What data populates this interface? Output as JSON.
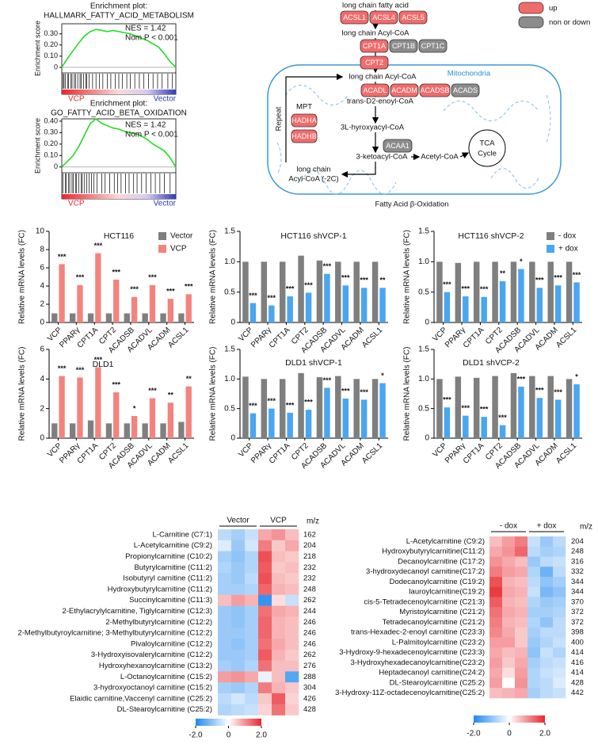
{
  "chart_data": [
    {
      "type": "line",
      "title": "Enrichment plot:",
      "subtitle": "HALLMARK_FATTY_ACID_METABOLISM",
      "ylabel": "Enrichment score",
      "x": [
        0,
        0.05,
        0.1,
        0.15,
        0.2,
        0.25,
        0.3,
        0.35,
        0.4,
        0.45,
        0.5,
        0.55,
        0.6,
        0.65,
        0.7,
        0.75,
        0.8,
        0.85,
        0.9,
        0.95,
        1
      ],
      "xlim": [
        0,
        1
      ],
      "series": [
        {
          "color": "#22dd22",
          "values": [
            0,
            0.08,
            0.15,
            0.22,
            0.28,
            0.32,
            0.34,
            0.33,
            0.32,
            0.33,
            0.32,
            0.31,
            0.3,
            0.28,
            0.26,
            0.24,
            0.21,
            0.18,
            0.12,
            0.05,
            0
          ]
        }
      ],
      "ylim": [
        -0.05,
        0.39
      ],
      "yticks": [
        0,
        {
          "value": 0.1,
          "label": "0.10"
        },
        {
          "value": 0.2,
          "label": "0.20"
        },
        {
          "value": 0.3,
          "label": "0.30"
        }
      ],
      "annotations": [
        "NES = 1.42",
        "Nom P < 0.001"
      ],
      "hits": [
        0.01,
        0.02,
        0.03,
        0.05,
        0.06,
        0.08,
        0.09,
        0.11,
        0.12,
        0.14,
        0.16,
        0.17,
        0.19,
        0.21,
        0.22,
        0.24,
        0.27,
        0.3,
        0.33,
        0.36,
        0.4,
        0.43,
        0.47,
        0.5,
        0.53,
        0.57,
        0.6,
        0.64,
        0.68,
        0.72,
        0.76,
        0.8,
        0.84,
        0.88,
        0.93,
        0.97
      ],
      "left_label": "VCP",
      "right_label": "Vector",
      "label_colors": [
        "#e8262b",
        "#2f3ab5"
      ]
    },
    {
      "type": "line",
      "title": "Enrichment plot:",
      "subtitle": "GO_FATTY_ACID_BETA_OXIDATION",
      "ylabel": "Enrichment score",
      "x": [
        0,
        0.05,
        0.1,
        0.15,
        0.2,
        0.25,
        0.3,
        0.35,
        0.4,
        0.45,
        0.5,
        0.55,
        0.6,
        0.65,
        0.7,
        0.75,
        0.8,
        0.85,
        0.9,
        0.95,
        1
      ],
      "xlim": [
        0,
        1
      ],
      "series": [
        {
          "color": "#22dd22",
          "values": [
            0,
            0.05,
            0.1,
            0.18,
            0.28,
            0.38,
            0.42,
            0.38,
            0.36,
            0.34,
            0.33,
            0.31,
            0.3,
            0.29,
            0.27,
            0.24,
            0.2,
            0.17,
            0.14,
            0.08,
            0
          ]
        }
      ],
      "ylim": [
        -0.05,
        0.42
      ],
      "yticks": [
        0,
        {
          "value": 0.1,
          "label": "0.10"
        },
        {
          "value": 0.2,
          "label": "0.20"
        },
        {
          "value": 0.3,
          "label": "0.30"
        },
        {
          "value": 0.4,
          "label": "0.40"
        }
      ],
      "annotations": [
        "NES = 1.42",
        "Nom P < 0.001"
      ],
      "hits": [
        0.01,
        0.03,
        0.04,
        0.06,
        0.07,
        0.09,
        0.1,
        0.12,
        0.13,
        0.15,
        0.17,
        0.18,
        0.2,
        0.22,
        0.24,
        0.26,
        0.28,
        0.31,
        0.35,
        0.38,
        0.42,
        0.46,
        0.49,
        0.52,
        0.56,
        0.59,
        0.63,
        0.66,
        0.7,
        0.74,
        0.78,
        0.82,
        0.86,
        0.9,
        0.95
      ],
      "left_label": "VCP",
      "right_label": "Vector",
      "label_colors": [
        "#e8262b",
        "#2f3ab5"
      ]
    },
    {
      "type": "bar",
      "title": "HCT116",
      "ylabel": "Relative mRNA levels (FC)",
      "legend": "top-right",
      "categories": [
        "VCP",
        "PPARγ",
        "CPT1A",
        "CPT2",
        "ACADSB",
        "ACADVL",
        "ACADM",
        "ACSL1"
      ],
      "series": [
        {
          "name": "Vector",
          "color": "#7f7f7f",
          "values": [
            1,
            1,
            1,
            1,
            1,
            1,
            1,
            1
          ]
        },
        {
          "name": "VCP",
          "color": "#f4837d",
          "values": [
            6.4,
            4.1,
            7.6,
            4.7,
            2.8,
            4.1,
            2.6,
            3.1
          ]
        }
      ],
      "annotations": [
        "***",
        "***",
        "***",
        "***",
        "***",
        "***",
        "***",
        "***"
      ],
      "ylim": [
        0,
        10
      ],
      "yticks": [
        0,
        2,
        4,
        6,
        8,
        10
      ]
    },
    {
      "type": "bar",
      "title": "HCT116 shVCP-1",
      "ylabel": "Relative mRNA levels (FC)",
      "categories": [
        "VCP",
        "PPARγ",
        "CPT1A",
        "CPT2",
        "ACADSB",
        "ACADVL",
        "ACADM",
        "ACSL1"
      ],
      "series": [
        {
          "color": "#7f7f7f",
          "values": [
            1.0,
            1.0,
            1.0,
            1.1,
            1.02,
            1.0,
            1.0,
            1.0
          ]
        },
        {
          "color": "#4aa6f0",
          "values": [
            0.32,
            0.28,
            0.43,
            0.49,
            0.8,
            0.61,
            0.57,
            0.57
          ]
        }
      ],
      "annotations": [
        "***",
        "***",
        "***",
        "***",
        "***",
        "***",
        "***",
        "**"
      ],
      "ylim": [
        0,
        1.5
      ],
      "yticks": [
        0,
        0.5,
        {
          "value": 1,
          "label": "1.0"
        },
        1.5
      ]
    },
    {
      "type": "bar",
      "title": "HCT116 shVCP-2",
      "ylabel": "Relative mRNA levels (FC)",
      "legend": "top-right",
      "categories": [
        "VCP",
        "PPARγ",
        "CPT1A",
        "CPT2",
        "ACADSB",
        "ACADVL",
        "ACADM",
        "ACSL1"
      ],
      "series": [
        {
          "name": "- dox",
          "color": "#7f7f7f",
          "values": [
            1.0,
            0.98,
            1.0,
            1.0,
            1.0,
            1.0,
            1.0,
            1.0
          ]
        },
        {
          "name": "+ dox",
          "color": "#4aa6f0",
          "values": [
            0.5,
            0.43,
            0.42,
            0.68,
            0.88,
            0.57,
            0.61,
            0.66
          ]
        }
      ],
      "annotations": [
        "***",
        "***",
        "***",
        "**",
        "*",
        "***",
        "***",
        "***"
      ],
      "ylim": [
        0,
        1.5
      ],
      "yticks": [
        0,
        0.5,
        {
          "value": 1,
          "label": "1.0"
        },
        1.5
      ]
    },
    {
      "type": "bar",
      "title": "DLD1",
      "ylabel": "Relative mRNA levels (FC)",
      "categories": [
        "VCP",
        "PPARγ",
        "CPT1A",
        "CPT2",
        "ACADSB",
        "ACADVL",
        "ACADM",
        "ACSL1"
      ],
      "series": [
        {
          "color": "#7f7f7f",
          "values": [
            1,
            1,
            1.2,
            1,
            1,
            1,
            1,
            1.1
          ]
        },
        {
          "color": "#f4837d",
          "values": [
            4.2,
            4.1,
            4.8,
            3.1,
            1.5,
            2.7,
            2.4,
            3.5
          ]
        }
      ],
      "annotations": [
        "***",
        "***",
        "***",
        "***",
        "*",
        "***",
        "**",
        "**"
      ],
      "ylim": [
        0,
        6
      ],
      "yticks": [
        0,
        2,
        4,
        6
      ]
    },
    {
      "type": "bar",
      "title": "DLD1 shVCP-1",
      "ylabel": "Relative mRNA levels (FC)",
      "categories": [
        "VCP",
        "PPARγ",
        "CPT1A",
        "CPT2",
        "ACADSB",
        "ACADVL",
        "ACADM",
        "ACSL1"
      ],
      "series": [
        {
          "color": "#7f7f7f",
          "values": [
            1.04,
            1.0,
            1.0,
            1.1,
            1.03,
            1.05,
            1.0,
            1.0
          ]
        },
        {
          "color": "#4aa6f0",
          "values": [
            0.42,
            0.5,
            0.43,
            0.48,
            0.85,
            0.67,
            0.65,
            0.93
          ]
        }
      ],
      "annotations": [
        "***",
        "***",
        "***",
        "***",
        "***",
        "***",
        "***",
        "*"
      ],
      "ylim": [
        0,
        1.5
      ],
      "yticks": [
        0,
        0.5,
        {
          "value": 1,
          "label": "1.0"
        },
        1.5
      ]
    },
    {
      "type": "bar",
      "title": "DLD1 shVCP-2",
      "ylabel": "Relative mRNA levels (FC)",
      "categories": [
        "VCP",
        "PPARγ",
        "CPT1A",
        "CPT2",
        "ACADSB",
        "ACADVL",
        "ACADM",
        "ACSL1"
      ],
      "series": [
        {
          "color": "#7f7f7f",
          "values": [
            1.0,
            1.04,
            1.02,
            1.05,
            1.1,
            1.05,
            1.05,
            1.0
          ]
        },
        {
          "color": "#4aa6f0",
          "values": [
            0.52,
            0.38,
            0.36,
            0.22,
            0.87,
            0.68,
            0.65,
            0.91
          ]
        }
      ],
      "annotations": [
        "***",
        "***",
        "***",
        "***",
        "***",
        "***",
        "***",
        "*"
      ],
      "ylim": [
        0,
        1.5
      ],
      "yticks": [
        0,
        0.5,
        {
          "value": 1,
          "label": "1.0"
        },
        1.5
      ]
    },
    {
      "type": "heatmap",
      "groups": [
        "Vector",
        "VCP"
      ],
      "mz_label": "m/z",
      "rows": [
        "L-Carnitine (C7:1)",
        "L-Acetylcarnitine (C9:2)",
        "Propionylcarnitine (C10:2)",
        "Butyrylcarnitine (C11:2)",
        "Isobutyryl carnitine (C11:2)",
        "Hydroxybutyrylcarnitine (C11:2)",
        "Succinylcarnitine (C11:3)",
        "2-Ethylacrylylcarnitine, Tiglylcarnitine (C12:3)",
        "2-Methylbutyrylcarnitine (C12:2)",
        "2-Methylbutyroylcarnitine; 3-Methylbutyrylcarnitine (C12:2)",
        "Pivaloylcarnitine (C12:2)",
        "3-Hydroxyisovalerylcarnitine (C12:2)",
        "Hydroxyhexanoylcarnitine (C13:2)",
        "L-Octanoylcarnitine (C15:2)",
        "3-hydroxyoctanoyl carnitine (C15:2)",
        "Elaidic carnitine,Vaccenyl carnitine (C25:2)",
        "DL-Stearoylcarnitine (C25:2)"
      ],
      "mz": [
        162,
        204,
        218,
        232,
        232,
        248,
        262,
        244,
        246,
        246,
        246,
        262,
        276,
        288,
        304,
        426,
        428
      ],
      "values": [
        [
          -0.6,
          -0.8,
          -0.5,
          0.8,
          1.0,
          0.6
        ],
        [
          -0.3,
          -0.9,
          -0.4,
          1.2,
          0.5,
          0.8
        ],
        [
          -0.8,
          -1.0,
          -0.7,
          1.6,
          0.6,
          0.5
        ],
        [
          -0.7,
          -0.9,
          -0.7,
          1.5,
          0.5,
          0.6
        ],
        [
          -0.8,
          -0.9,
          -0.6,
          1.6,
          0.6,
          0.5
        ],
        [
          -0.8,
          -0.8,
          -0.7,
          1.4,
          0.7,
          0.6
        ],
        [
          0.6,
          0.9,
          0.7,
          -1.8,
          0.3,
          -0.5
        ],
        [
          -0.9,
          -1.0,
          -0.8,
          1.3,
          0.8,
          0.7
        ],
        [
          -0.9,
          -1.0,
          -0.8,
          1.4,
          0.7,
          0.6
        ],
        [
          -0.9,
          -0.9,
          -0.8,
          1.4,
          0.7,
          0.6
        ],
        [
          -0.9,
          -1.0,
          -0.8,
          1.3,
          0.8,
          0.6
        ],
        [
          -0.9,
          -0.9,
          -0.8,
          1.5,
          0.7,
          0.5
        ],
        [
          -0.8,
          -0.9,
          -0.7,
          1.3,
          0.6,
          0.6
        ],
        [
          0.9,
          1.0,
          0.8,
          -0.2,
          0.6,
          -1.5
        ],
        [
          -0.8,
          -0.9,
          -0.7,
          1.2,
          0.7,
          0.5
        ],
        [
          -0.6,
          -0.4,
          -0.6,
          0.5,
          1.5,
          0.4
        ],
        [
          -0.7,
          -0.6,
          -0.5,
          0.4,
          1.3,
          0.5
        ]
      ],
      "clim": [
        -2,
        2
      ],
      "colors": [
        "#1e88f0",
        "#ffffff",
        "#e8262b"
      ],
      "cticks": [
        {
          "value": -2,
          "label": "-2.0"
        },
        0,
        {
          "value": 2,
          "label": "2.0"
        }
      ]
    },
    {
      "type": "heatmap",
      "groups": [
        "- dox",
        "+ dox"
      ],
      "mz_label": "m/z",
      "rows": [
        "L-Acetylcarnitine (C9:2)",
        "Hydroxybutyrylcarnitine(C11:2)",
        "Decanoylcarnitine (C17:2)",
        "3-hydroxydecanoyl carnitine(C17:2)",
        "Dodecanoylcarnitine (C19:2)",
        "lauroylcarnitine(C19:2)",
        "cis-5-Tetradecenoylcarnitine (C21:3)",
        "Myristoylcarnitine (C21:2)",
        "Tetradecanoylcarnitine (C21:2)",
        "trans-Hexadec-2-enoyl carnitine (C23:3)",
        "L-Palmitoylcarnitine (C23:2)",
        "3-Hydroxy-9-hexadecenoylcarnitine (C23:3)",
        "3-Hydroxyhexadecanoylcarnitine(C23:2)",
        "Heptadecanoyl carnitine(C24:2)",
        "DL-Stearoylcarnitine (C25:2)",
        "3-Hydroxy-11Z-octadecenoylcarnitine(C25:2)"
      ],
      "mz": [
        204,
        248,
        316,
        332,
        344,
        344,
        370,
        372,
        372,
        398,
        400,
        414,
        416,
        414,
        428,
        442
      ],
      "values": [
        [
          0.6,
          0.9,
          1.2,
          -0.5,
          -0.9,
          -0.6
        ],
        [
          0.8,
          1.0,
          1.4,
          -0.6,
          -0.8,
          -0.7
        ],
        [
          1.0,
          0.8,
          0.6,
          -0.9,
          -0.6,
          -0.5
        ],
        [
          1.2,
          0.9,
          0.8,
          -0.7,
          -1.3,
          -0.6
        ],
        [
          1.6,
          0.7,
          0.6,
          -0.6,
          -1.0,
          -0.8
        ],
        [
          1.8,
          0.8,
          0.7,
          -0.5,
          -1.2,
          -1.0
        ],
        [
          1.5,
          0.7,
          0.6,
          -0.7,
          -0.9,
          -0.8
        ],
        [
          1.3,
          0.8,
          0.7,
          -0.8,
          -0.8,
          -0.7
        ],
        [
          1.2,
          0.7,
          0.6,
          -0.7,
          -1.0,
          -0.6
        ],
        [
          1.1,
          0.8,
          0.5,
          -0.8,
          -0.6,
          -0.6
        ],
        [
          0.9,
          0.9,
          0.5,
          -0.9,
          -0.7,
          -0.5
        ],
        [
          0.8,
          0.6,
          0.7,
          -1.0,
          -0.5,
          -0.7
        ],
        [
          0.9,
          0.5,
          0.8,
          -0.8,
          -0.6,
          -0.5
        ],
        [
          0.8,
          0.3,
          0.9,
          -0.7,
          -0.5,
          -0.4
        ],
        [
          0.9,
          0.0,
          1.0,
          -0.7,
          -0.6,
          -0.3
        ],
        [
          0.6,
          0.7,
          0.8,
          -0.8,
          -0.6,
          -0.5
        ]
      ],
      "clim": [
        -2,
        2
      ],
      "colors": [
        "#1e88f0",
        "#ffffff",
        "#e8262b"
      ],
      "cticks": [
        {
          "value": -2,
          "label": "-2.0"
        },
        0,
        {
          "value": 2,
          "label": "2.0"
        }
      ]
    }
  ],
  "diagram": {
    "title": "Fatty Acid β-Oxidation",
    "compartment": "Mitochondria",
    "legend": [
      {
        "label": "up",
        "color": "#f26b6b"
      },
      {
        "label": "non or down",
        "color": "#8c8c8c"
      }
    ],
    "metabolites": [
      "long chain fatty acid",
      "long chain Acyl-CoA",
      "long chain Acyl-CoA",
      "trans-D2-enoyl-CoA",
      "3L-hyroxyacyl-CoA",
      "3-ketoacyl-CoA",
      "Acetyl-CoA"
    ],
    "product": [
      "long chain",
      "Acyl-CoA (-2C)"
    ],
    "cycle": [
      "TCA",
      "Cycle"
    ],
    "loop": "Repeat",
    "complex": "MPT",
    "enzymes": [
      {
        "label": "ACSL1",
        "color": "#f26b6b"
      },
      {
        "label": "ACSL4",
        "color": "#f26b6b"
      },
      {
        "label": "ACSL5",
        "color": "#f26b6b"
      },
      {
        "label": "CPT1A",
        "color": "#f26b6b"
      },
      {
        "label": "CPT1B",
        "color": "#8c8c8c"
      },
      {
        "label": "CPT1C",
        "color": "#8c8c8c"
      },
      {
        "label": "CPT2",
        "color": "#f26b6b"
      },
      {
        "label": "ACADL",
        "color": "#f26b6b"
      },
      {
        "label": "ACADM",
        "color": "#f26b6b"
      },
      {
        "label": "ACADSB",
        "color": "#f26b6b"
      },
      {
        "label": "ACADS",
        "color": "#8c8c8c"
      },
      {
        "label": "HADHA",
        "color": "#f26b6b"
      },
      {
        "label": "HADHB",
        "color": "#f26b6b"
      },
      {
        "label": "ACAA1",
        "color": "#8c8c8c"
      }
    ]
  }
}
